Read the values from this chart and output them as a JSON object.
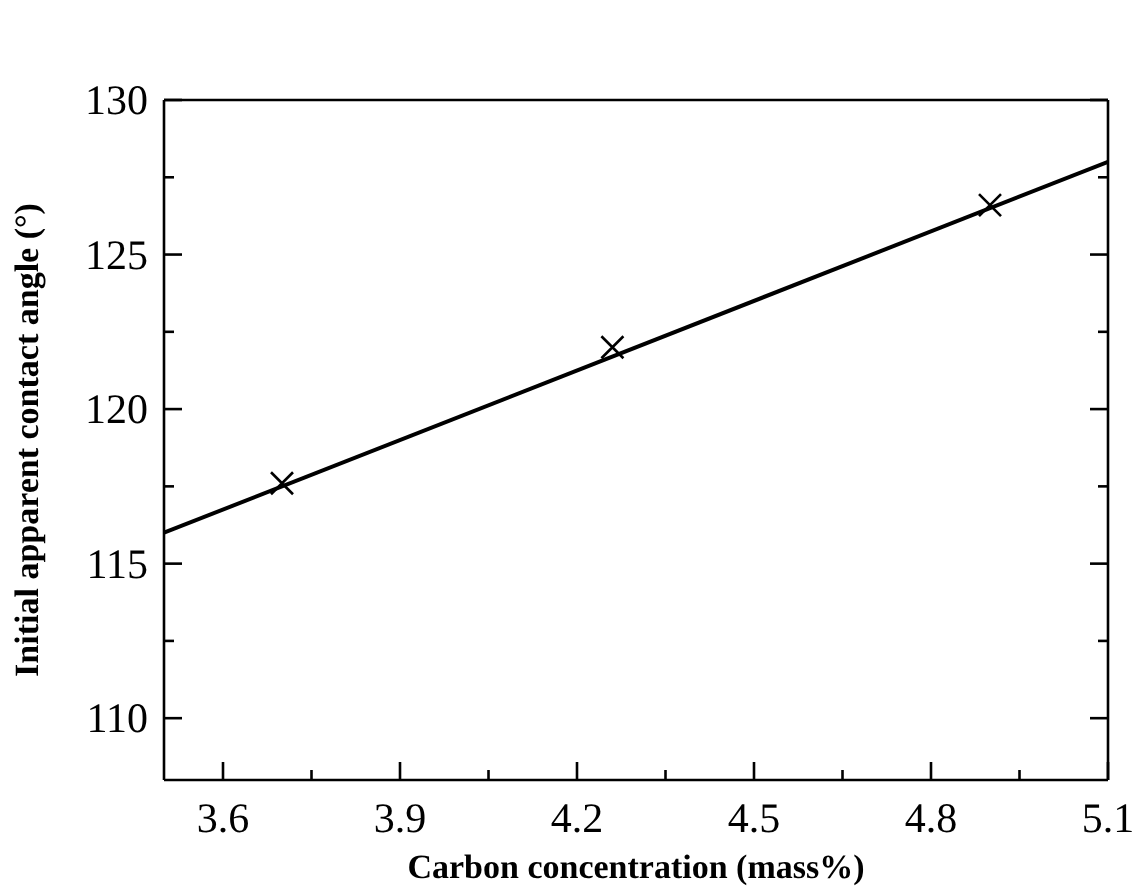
{
  "chart_data": {
    "type": "scatter",
    "xlabel": "Carbon concentration (mass%)",
    "ylabel": "Initial apparent contact angle (°)",
    "xlim": [
      3.5,
      5.1
    ],
    "ylim": [
      108,
      130
    ],
    "xticks": [
      3.6,
      {
        "value": 3.75,
        "label": null
      },
      3.9,
      {
        "value": 4.05,
        "label": null
      },
      4.2,
      {
        "value": 4.35,
        "label": null
      },
      4.5,
      {
        "value": 4.65,
        "label": null
      },
      4.8,
      {
        "value": 4.95,
        "label": null
      },
      5.1
    ],
    "yticks": [
      110,
      {
        "value": 112.5,
        "label": null
      },
      115,
      {
        "value": 117.5,
        "label": null
      },
      120,
      {
        "value": 122.5,
        "label": null
      },
      125,
      {
        "value": 127.5,
        "label": null
      },
      130
    ],
    "marker": "cross",
    "grid": false,
    "legend": false,
    "series": [
      {
        "color": "#000000",
        "x": [
          3.7,
          4.26,
          4.9
        ],
        "values": [
          117.6,
          122.0,
          126.6
        ]
      },
      {
        "type": "line",
        "color": "#000000",
        "line_style": "solid",
        "marker": "none",
        "x": [
          3.5,
          5.1
        ],
        "values": [
          116.0,
          128.0
        ]
      }
    ]
  }
}
